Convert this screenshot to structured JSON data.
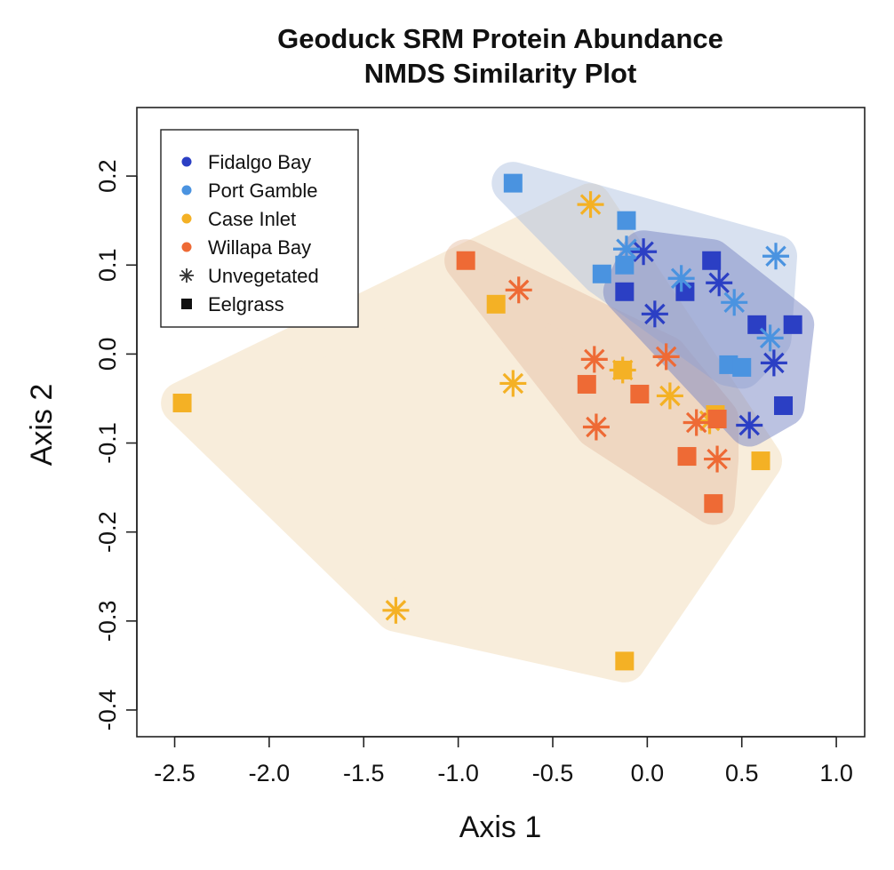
{
  "chart_data": {
    "type": "scatter",
    "title": [
      "Geoduck SRM Protein Abundance",
      "NMDS Similarity Plot"
    ],
    "xlabel": "Axis 1",
    "ylabel": "Axis 2",
    "xlim": [
      -2.7,
      1.15
    ],
    "ylim": [
      -0.43,
      0.277
    ],
    "x_ticks": [
      -2.5,
      -2.0,
      -1.5,
      -1.0,
      -0.5,
      0.0,
      0.5,
      1.0
    ],
    "x_tick_labels": [
      "-2.5",
      "-2.0",
      "-1.5",
      "-1.0",
      "-0.5",
      "0.0",
      "0.5",
      "1.0"
    ],
    "y_ticks": [
      -0.4,
      -0.3,
      -0.2,
      -0.1,
      0.0,
      0.1,
      0.2
    ],
    "y_tick_labels": [
      "-0.4",
      "-0.3",
      "-0.2",
      "-0.1",
      "0.0",
      "0.1",
      "0.2"
    ],
    "grid": false,
    "legend_position": "top-left",
    "legend": [
      {
        "label": "Fidalgo Bay",
        "symbol": "dot",
        "color": "#2B3FC4"
      },
      {
        "label": "Port Gamble",
        "symbol": "dot",
        "color": "#4A93E0"
      },
      {
        "label": "Case Inlet",
        "symbol": "dot",
        "color": "#F4B125"
      },
      {
        "label": "Willapa Bay",
        "symbol": "dot",
        "color": "#EE6A35"
      },
      {
        "label": "Unvegetated",
        "symbol": "asterisk",
        "color": "#333333"
      },
      {
        "label": "Eelgrass",
        "symbol": "square",
        "color": "#111111"
      }
    ],
    "site_colors": {
      "Fidalgo Bay": "#2B3FC4",
      "Port Gamble": "#4A93E0",
      "Case Inlet": "#F4B125",
      "Willapa Bay": "#EE6A35"
    },
    "hull_colors": {
      "Fidalgo Bay": "#7A86C4",
      "Port Gamble": "#A9BEE0",
      "Case Inlet": "#F3DFBF",
      "Willapa Bay": "#E8C2A8"
    },
    "series": [
      {
        "name": "Fidalgo Bay",
        "points": [
          {
            "x": -0.02,
            "y": 0.115,
            "habitat": "Unvegetated"
          },
          {
            "x": 0.04,
            "y": 0.045,
            "habitat": "Unvegetated"
          },
          {
            "x": 0.38,
            "y": 0.08,
            "habitat": "Unvegetated"
          },
          {
            "x": 0.67,
            "y": -0.01,
            "habitat": "Unvegetated"
          },
          {
            "x": 0.54,
            "y": -0.08,
            "habitat": "Unvegetated"
          },
          {
            "x": -0.12,
            "y": 0.07,
            "habitat": "Eelgrass"
          },
          {
            "x": 0.2,
            "y": 0.07,
            "habitat": "Eelgrass"
          },
          {
            "x": 0.34,
            "y": 0.105,
            "habitat": "Eelgrass"
          },
          {
            "x": 0.58,
            "y": 0.033,
            "habitat": "Eelgrass"
          },
          {
            "x": 0.77,
            "y": 0.033,
            "habitat": "Eelgrass"
          },
          {
            "x": 0.72,
            "y": -0.058,
            "habitat": "Eelgrass"
          }
        ]
      },
      {
        "name": "Port Gamble",
        "points": [
          {
            "x": -0.11,
            "y": 0.118,
            "habitat": "Unvegetated"
          },
          {
            "x": 0.18,
            "y": 0.085,
            "habitat": "Unvegetated"
          },
          {
            "x": 0.46,
            "y": 0.058,
            "habitat": "Unvegetated"
          },
          {
            "x": 0.65,
            "y": 0.018,
            "habitat": "Unvegetated"
          },
          {
            "x": 0.68,
            "y": 0.11,
            "habitat": "Unvegetated"
          },
          {
            "x": -0.71,
            "y": 0.192,
            "habitat": "Eelgrass"
          },
          {
            "x": -0.11,
            "y": 0.15,
            "habitat": "Eelgrass"
          },
          {
            "x": -0.24,
            "y": 0.09,
            "habitat": "Eelgrass"
          },
          {
            "x": -0.12,
            "y": 0.1,
            "habitat": "Eelgrass"
          },
          {
            "x": 0.43,
            "y": -0.012,
            "habitat": "Eelgrass"
          },
          {
            "x": 0.5,
            "y": -0.015,
            "habitat": "Eelgrass"
          }
        ]
      },
      {
        "name": "Case Inlet",
        "points": [
          {
            "x": -0.3,
            "y": 0.168,
            "habitat": "Unvegetated"
          },
          {
            "x": -0.71,
            "y": -0.033,
            "habitat": "Unvegetated"
          },
          {
            "x": -0.13,
            "y": -0.018,
            "habitat": "Unvegetated"
          },
          {
            "x": 0.12,
            "y": -0.047,
            "habitat": "Unvegetated"
          },
          {
            "x": 0.33,
            "y": -0.075,
            "habitat": "Unvegetated"
          },
          {
            "x": -1.33,
            "y": -0.288,
            "habitat": "Unvegetated"
          },
          {
            "x": -2.46,
            "y": -0.055,
            "habitat": "Eelgrass"
          },
          {
            "x": -0.8,
            "y": 0.056,
            "habitat": "Eelgrass"
          },
          {
            "x": -0.13,
            "y": -0.018,
            "habitat": "Eelgrass"
          },
          {
            "x": 0.6,
            "y": -0.12,
            "habitat": "Eelgrass"
          },
          {
            "x": 0.36,
            "y": -0.068,
            "habitat": "Eelgrass"
          },
          {
            "x": -0.12,
            "y": -0.345,
            "habitat": "Eelgrass"
          }
        ]
      },
      {
        "name": "Willapa Bay",
        "points": [
          {
            "x": -0.68,
            "y": 0.072,
            "habitat": "Unvegetated"
          },
          {
            "x": -0.28,
            "y": -0.006,
            "habitat": "Unvegetated"
          },
          {
            "x": 0.1,
            "y": -0.003,
            "habitat": "Unvegetated"
          },
          {
            "x": -0.27,
            "y": -0.082,
            "habitat": "Unvegetated"
          },
          {
            "x": 0.26,
            "y": -0.077,
            "habitat": "Unvegetated"
          },
          {
            "x": 0.37,
            "y": -0.118,
            "habitat": "Unvegetated"
          },
          {
            "x": -0.96,
            "y": 0.105,
            "habitat": "Eelgrass"
          },
          {
            "x": -0.32,
            "y": -0.034,
            "habitat": "Eelgrass"
          },
          {
            "x": -0.04,
            "y": -0.045,
            "habitat": "Eelgrass"
          },
          {
            "x": 0.21,
            "y": -0.115,
            "habitat": "Eelgrass"
          },
          {
            "x": 0.37,
            "y": -0.073,
            "habitat": "Eelgrass"
          },
          {
            "x": 0.35,
            "y": -0.168,
            "habitat": "Eelgrass"
          }
        ]
      }
    ]
  }
}
